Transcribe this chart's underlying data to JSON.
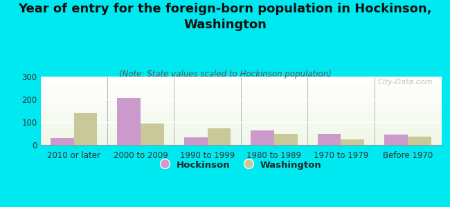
{
  "categories": [
    "2010 or later",
    "2000 to 2009",
    "1990 to 1999",
    "1980 to 1989",
    "1970 to 1979",
    "Before 1970"
  ],
  "hockinson": [
    30,
    205,
    33,
    63,
    48,
    45
  ],
  "washington": [
    140,
    93,
    72,
    50,
    25,
    35
  ],
  "hockinson_color": "#cc99cc",
  "washington_color": "#c8c899",
  "title": "Year of entry for the foreign-born population in Hockinson,\nWashington",
  "subtitle": "(Note: State values scaled to Hockinson population)",
  "legend_hockinson": "Hockinson",
  "legend_washington": "Washington",
  "ylim": [
    0,
    300
  ],
  "yticks": [
    0,
    100,
    200,
    300
  ],
  "background_color": "#00e8f0",
  "watermark": "City-Data.com",
  "bar_width": 0.35,
  "title_fontsize": 13,
  "subtitle_fontsize": 8.5,
  "tick_fontsize": 8.5,
  "legend_fontsize": 9.5
}
